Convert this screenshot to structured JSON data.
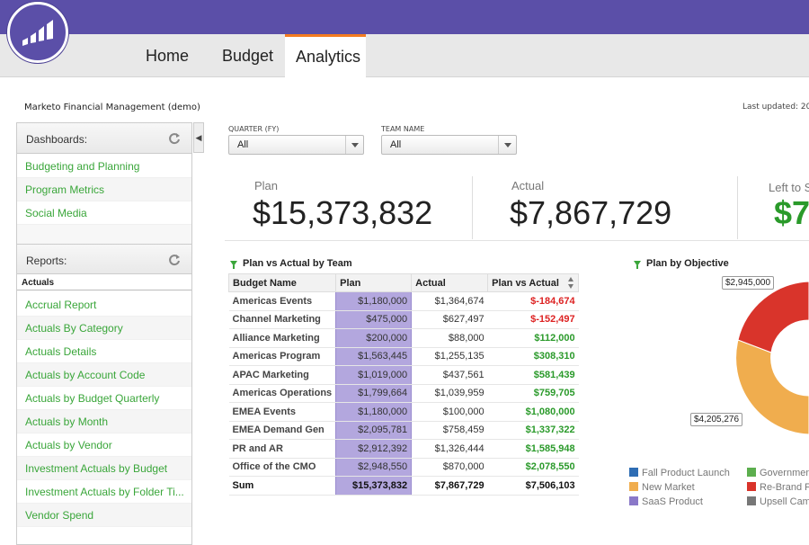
{
  "nav": {
    "tabs": [
      {
        "label": "Home"
      },
      {
        "label": "Budget"
      },
      {
        "label": "Analytics"
      }
    ]
  },
  "header": {
    "app_title": "Marketo Financial Management (demo)",
    "last_updated": "Last updated: 20"
  },
  "sidebar": {
    "dashboards_title": "Dashboards:",
    "dashboards": [
      "Budgeting and Planning",
      "Program Metrics",
      "Social Media"
    ],
    "reports_title": "Reports:",
    "reports_group": "Actuals",
    "reports": [
      "Accrual Report",
      "Actuals By Category",
      "Actuals Details",
      "Actuals by Account Code",
      "Actuals by Budget Quarterly",
      "Actuals by Month",
      "Actuals by Vendor",
      "Investment Actuals by Budget",
      "Investment Actuals by Folder Ti...",
      "Vendor Spend"
    ]
  },
  "filters": {
    "quarter": {
      "label": "QUARTER (FY)",
      "value": "All"
    },
    "team": {
      "label": "TEAM NAME",
      "value": "All"
    }
  },
  "kpis": {
    "plan": {
      "label": "Plan",
      "value": "$15,373,832"
    },
    "actual": {
      "label": "Actual",
      "value": "$7,867,729"
    },
    "left": {
      "label": "Left to S",
      "value": "$7"
    }
  },
  "table": {
    "title": "Plan vs Actual by Team",
    "headers": [
      "Budget Name",
      "Plan",
      "Actual",
      "Plan vs Actual"
    ],
    "rows": [
      {
        "team": "Americas Events",
        "plan": "$1,180,000",
        "actual": "$1,364,674",
        "pva": "$-184,674"
      },
      {
        "team": "Channel Marketing",
        "plan": "$475,000",
        "actual": "$627,497",
        "pva": "$-152,497"
      },
      {
        "team": "Alliance Marketing",
        "plan": "$200,000",
        "actual": "$88,000",
        "pva": "$112,000"
      },
      {
        "team": "Americas Program",
        "plan": "$1,563,445",
        "actual": "$1,255,135",
        "pva": "$308,310"
      },
      {
        "team": "APAC Marketing",
        "plan": "$1,019,000",
        "actual": "$437,561",
        "pva": "$581,439"
      },
      {
        "team": "Americas Operations",
        "plan": "$1,799,664",
        "actual": "$1,039,959",
        "pva": "$759,705"
      },
      {
        "team": "EMEA Events",
        "plan": "$1,180,000",
        "actual": "$100,000",
        "pva": "$1,080,000"
      },
      {
        "team": "EMEA Demand Gen",
        "plan": "$2,095,781",
        "actual": "$758,459",
        "pva": "$1,337,322"
      },
      {
        "team": "PR and AR",
        "plan": "$2,912,392",
        "actual": "$1,326,444",
        "pva": "$1,585,948"
      },
      {
        "team": "Office of the CMO",
        "plan": "$2,948,550",
        "actual": "$870,000",
        "pva": "$2,078,550"
      }
    ],
    "sum": {
      "team": "Sum",
      "plan": "$15,373,832",
      "actual": "$7,867,729",
      "pva": "$7,506,103"
    }
  },
  "objective_chart": {
    "title": "Plan by Objective",
    "callouts": [
      "$2,945,000",
      "$4,205,276"
    ],
    "legend": [
      {
        "label": "Fall Product Launch",
        "color": "#2e6db4"
      },
      {
        "label": "Governmen",
        "color": "#5cae4e"
      },
      {
        "label": "New Market",
        "color": "#f0ad4e"
      },
      {
        "label": "Re-Brand F",
        "color": "#d9342b"
      },
      {
        "label": "SaaS Product",
        "color": "#8a78c8"
      },
      {
        "label": "Upsell Cam",
        "color": "#777777"
      }
    ]
  },
  "colors": {
    "brand": "#5b4fa8",
    "accent": "#f47b20",
    "link_green": "#3aa63a",
    "negative": "#d22222",
    "plan_highlight": "#b3a7de"
  }
}
